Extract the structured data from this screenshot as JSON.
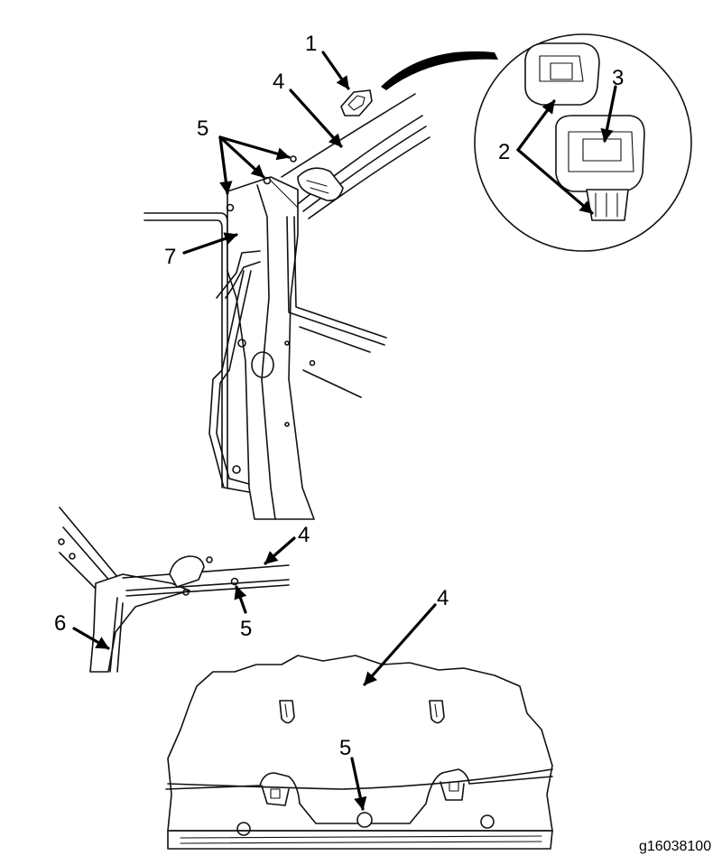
{
  "callouts": {
    "c1": "1",
    "c2": "2",
    "c3": "3",
    "c4a": "4",
    "c4b": "4",
    "c4c": "4",
    "c5a": "5",
    "c5b": "5",
    "c5c": "5",
    "c6": "6",
    "c7": "7"
  },
  "figure_id": "g16038100"
}
